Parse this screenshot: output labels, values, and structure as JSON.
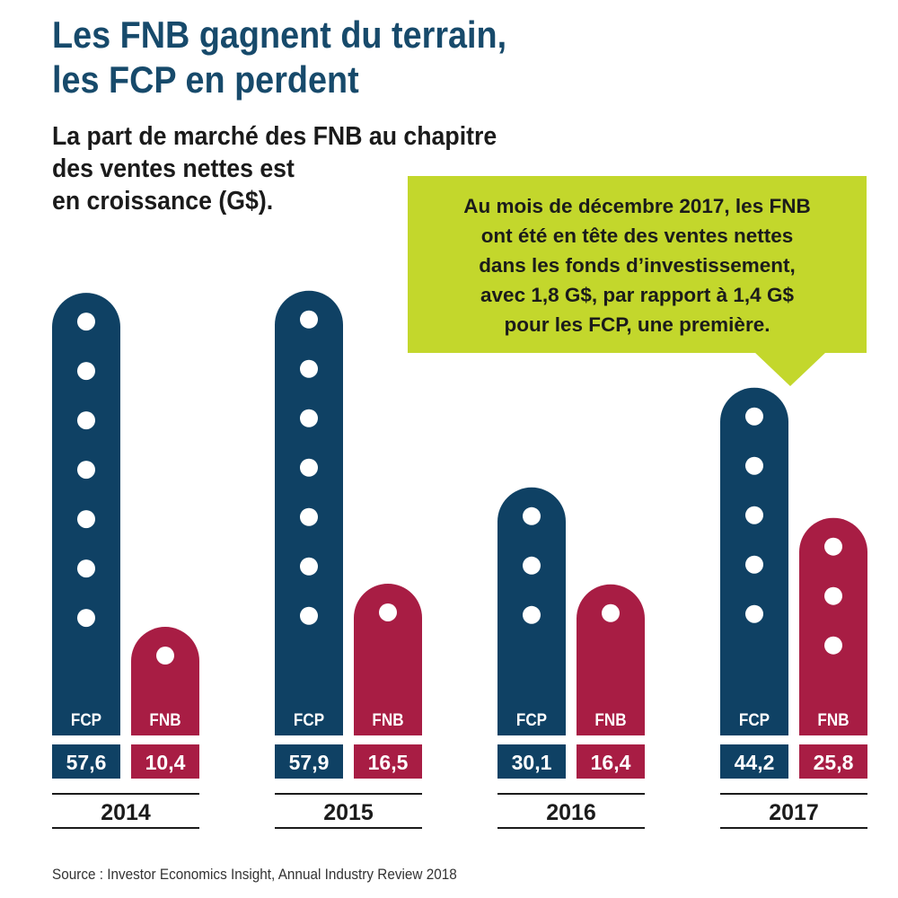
{
  "title_lines": [
    "Les FNB gagnent du terrain,",
    "les FCP en perdent"
  ],
  "subtitle_lines": [
    "La part de marché des FNB au chapitre",
    "des ventes nettes est",
    "en croissance (G$)."
  ],
  "callout_lines": [
    "Au mois de décembre 2017, les FNB",
    "ont été en tête des ventes nettes",
    "dans les fonds d’investissement,",
    "avec 1,8 G$, par rapport à 1,4 G$",
    "pour les FCP, une première."
  ],
  "source": "Source : Investor Economics Insight, Annual Industry Review 2018",
  "colors": {
    "FCP": "#0f4164",
    "FNB": "#a81d44",
    "callout": "#c3d72c",
    "title": "#174a6b"
  },
  "chart_data": {
    "type": "bar",
    "categories": [
      "2014",
      "2015",
      "2016",
      "2017"
    ],
    "series": [
      {
        "name": "FCP",
        "values": [
          57.6,
          57.9,
          30.1,
          44.2
        ],
        "labels": [
          "57,6",
          "57,9",
          "30,1",
          "44,2"
        ]
      },
      {
        "name": "FNB",
        "values": [
          10.4,
          16.5,
          16.4,
          25.8
        ],
        "labels": [
          "10,4",
          "16,5",
          "16,4",
          "25,8"
        ]
      }
    ],
    "title": "Les FNB gagnent du terrain, les FCP en perdent",
    "ylabel": "",
    "xlabel": "",
    "unit": "G$"
  }
}
